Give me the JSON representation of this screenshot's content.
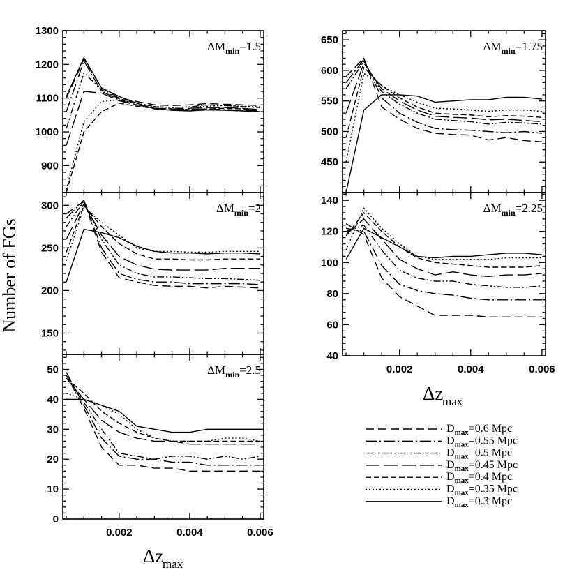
{
  "figure": {
    "y_axis_label": "Number of FGs",
    "x_axis_label_main": "Δz",
    "x_axis_label_sub": "max"
  },
  "legend": {
    "entries": [
      {
        "key": "d06",
        "prefix": "D",
        "sub": "max",
        "text": "=0.6 Mpc",
        "dash": "12,6"
      },
      {
        "key": "d055",
        "prefix": "D",
        "sub": "max",
        "text": "=0.55 Mpc",
        "dash": "16,4,2,4"
      },
      {
        "key": "d05",
        "prefix": "D",
        "sub": "max",
        "text": "=0.5 Mpc",
        "dash": "10,3,2,3,2,3"
      },
      {
        "key": "d045",
        "prefix": "D",
        "sub": "max",
        "text": "=0.45 Mpc",
        "dash": "20,6"
      },
      {
        "key": "d04",
        "prefix": "D",
        "sub": "max",
        "text": "=0.4 Mpc",
        "dash": "8,4"
      },
      {
        "key": "d035",
        "prefix": "D",
        "sub": "max",
        "text": "=0.35 Mpc",
        "dash": "2,3"
      },
      {
        "key": "d03",
        "prefix": "D",
        "sub": "max",
        "text": "=0.3 Mpc",
        "dash": ""
      }
    ]
  },
  "chart_data": [
    {
      "type": "line",
      "id": "p15",
      "annotation": {
        "prefix": "ΔM",
        "sub": "min",
        "suffix": "=1.5"
      },
      "xlim": [
        0.0004,
        0.0061
      ],
      "ylim": [
        820,
        1300
      ],
      "yticks": [
        900,
        1000,
        1100,
        1200,
        1300
      ],
      "xticks": [
        0.002,
        0.004,
        0.006
      ],
      "xtick_labels": [],
      "x": [
        0.0005,
        0.001,
        0.0015,
        0.002,
        0.0025,
        0.003,
        0.0035,
        0.004,
        0.0045,
        0.005,
        0.0055,
        0.006
      ],
      "series": [
        {
          "name": "Dmax=0.6 Mpc",
          "values": [
            1100,
            1215,
            1130,
            1100,
            1090,
            1080,
            1078,
            1080,
            1084,
            1082,
            1080,
            1078
          ]
        },
        {
          "name": "Dmax=0.55 Mpc",
          "values": [
            1060,
            1210,
            1120,
            1095,
            1080,
            1070,
            1068,
            1066,
            1068,
            1066,
            1064,
            1062
          ]
        },
        {
          "name": "Dmax=0.5 Mpc",
          "values": [
            1010,
            1175,
            1125,
            1098,
            1085,
            1075,
            1072,
            1074,
            1080,
            1078,
            1075,
            1072
          ]
        },
        {
          "name": "Dmax=0.45 Mpc",
          "values": [
            960,
            1120,
            1115,
            1092,
            1080,
            1070,
            1068,
            1070,
            1072,
            1072,
            1070,
            1066
          ]
        },
        {
          "name": "Dmax=0.4 Mpc",
          "values": [
            820,
            1000,
            1060,
            1085,
            1076,
            1070,
            1068,
            1066,
            1068,
            1070,
            1068,
            1066
          ]
        },
        {
          "name": "Dmax=0.35 Mpc",
          "values": [
            830,
            1030,
            1090,
            1095,
            1085,
            1075,
            1072,
            1074,
            1076,
            1078,
            1076,
            1074
          ]
        },
        {
          "name": "Dmax=0.3 Mpc",
          "values": [
            1105,
            1220,
            1130,
            1105,
            1085,
            1068,
            1064,
            1062,
            1065,
            1064,
            1062,
            1060
          ]
        }
      ]
    },
    {
      "type": "line",
      "id": "p175",
      "annotation": {
        "prefix": "ΔM",
        "sub": "min",
        "suffix": "=1.75"
      },
      "xlim": [
        0.0004,
        0.0061
      ],
      "ylim": [
        400,
        665
      ],
      "yticks": [
        450,
        500,
        550,
        600,
        650
      ],
      "xticks": [
        0.002,
        0.004,
        0.006
      ],
      "xtick_labels": [],
      "x": [
        0.0005,
        0.001,
        0.0015,
        0.002,
        0.0025,
        0.003,
        0.0035,
        0.004,
        0.0045,
        0.005,
        0.0055,
        0.006
      ],
      "series": [
        {
          "name": "Dmax=0.6 Mpc",
          "values": [
            590,
            620,
            540,
            520,
            505,
            497,
            495,
            494,
            486,
            490,
            485,
            483
          ]
        },
        {
          "name": "Dmax=0.55 Mpc",
          "values": [
            580,
            618,
            555,
            530,
            515,
            505,
            503,
            502,
            500,
            498,
            500,
            497
          ]
        },
        {
          "name": "Dmax=0.5 Mpc",
          "values": [
            570,
            615,
            565,
            545,
            530,
            520,
            518,
            516,
            512,
            515,
            514,
            512
          ]
        },
        {
          "name": "Dmax=0.45 Mpc",
          "values": [
            530,
            612,
            570,
            550,
            535,
            525,
            523,
            522,
            519,
            520,
            518,
            516
          ]
        },
        {
          "name": "Dmax=0.4 Mpc",
          "values": [
            490,
            605,
            575,
            555,
            540,
            530,
            528,
            527,
            524,
            526,
            525,
            523
          ]
        },
        {
          "name": "Dmax=0.35 Mpc",
          "values": [
            450,
            595,
            575,
            560,
            548,
            538,
            537,
            535,
            533,
            535,
            535,
            533
          ]
        },
        {
          "name": "Dmax=0.3 Mpc",
          "values": [
            400,
            535,
            560,
            560,
            558,
            548,
            550,
            552,
            552,
            556,
            556,
            553
          ]
        }
      ]
    },
    {
      "type": "line",
      "id": "p2",
      "annotation": {
        "prefix": "ΔM",
        "sub": "min",
        "suffix": "=2"
      },
      "xlim": [
        0.0004,
        0.0061
      ],
      "ylim": [
        125,
        315
      ],
      "yticks": [
        150,
        200,
        250,
        300
      ],
      "xticks": [
        0.002,
        0.004,
        0.006
      ],
      "xtick_labels": [],
      "x": [
        0.0005,
        0.001,
        0.0015,
        0.002,
        0.0025,
        0.003,
        0.0035,
        0.004,
        0.0045,
        0.005,
        0.0055,
        0.006
      ],
      "series": [
        {
          "name": "Dmax=0.6 Mpc",
          "values": [
            290,
            305,
            245,
            215,
            210,
            206,
            205,
            205,
            203,
            205,
            204,
            203
          ]
        },
        {
          "name": "Dmax=0.55 Mpc",
          "values": [
            285,
            306,
            250,
            220,
            213,
            210,
            210,
            208,
            208,
            208,
            208,
            207
          ]
        },
        {
          "name": "Dmax=0.5 Mpc",
          "values": [
            275,
            305,
            260,
            230,
            220,
            216,
            216,
            215,
            214,
            214,
            213,
            212
          ]
        },
        {
          "name": "Dmax=0.45 Mpc",
          "values": [
            260,
            302,
            265,
            240,
            230,
            225,
            224,
            224,
            224,
            226,
            226,
            226
          ]
        },
        {
          "name": "Dmax=0.4 Mpc",
          "values": [
            245,
            300,
            275,
            255,
            243,
            237,
            237,
            236,
            236,
            237,
            237,
            237
          ]
        },
        {
          "name": "Dmax=0.35 Mpc",
          "values": [
            235,
            298,
            280,
            265,
            250,
            246,
            246,
            245,
            245,
            246,
            246,
            246
          ]
        },
        {
          "name": "Dmax=0.3 Mpc",
          "values": [
            210,
            272,
            268,
            262,
            252,
            246,
            244,
            244,
            243,
            244,
            244,
            243
          ]
        }
      ]
    },
    {
      "type": "line",
      "id": "p225",
      "annotation": {
        "prefix": "ΔM",
        "sub": "min",
        "suffix": "=2.25"
      },
      "xlim": [
        0.0004,
        0.0061
      ],
      "ylim": [
        40,
        145
      ],
      "yticks": [
        40,
        60,
        80,
        100,
        120,
        140
      ],
      "xticks": [
        0.002,
        0.004,
        0.006
      ],
      "xtick_labels": [
        "0.002",
        "0.004",
        "0.006"
      ],
      "x": [
        0.0005,
        0.001,
        0.0015,
        0.002,
        0.0025,
        0.003,
        0.0035,
        0.004,
        0.0045,
        0.005,
        0.0055,
        0.006
      ],
      "series": [
        {
          "name": "Dmax=0.6 Mpc",
          "values": [
            125,
            118,
            90,
            78,
            72,
            66,
            66,
            66,
            65,
            65,
            65,
            65
          ]
        },
        {
          "name": "Dmax=0.55 Mpc",
          "values": [
            122,
            120,
            98,
            86,
            82,
            80,
            79,
            77,
            76,
            76,
            76,
            76
          ]
        },
        {
          "name": "Dmax=0.5 Mpc",
          "values": [
            120,
            124,
            108,
            95,
            90,
            88,
            88,
            86,
            85,
            84,
            84,
            85
          ]
        },
        {
          "name": "Dmax=0.45 Mpc",
          "values": [
            118,
            128,
            115,
            102,
            96,
            92,
            94,
            92,
            91,
            92,
            92,
            93
          ]
        },
        {
          "name": "Dmax=0.4 Mpc",
          "values": [
            117,
            132,
            120,
            110,
            103,
            100,
            99,
            98,
            97,
            97,
            97,
            98
          ]
        },
        {
          "name": "Dmax=0.35 Mpc",
          "values": [
            108,
            135,
            122,
            112,
            104,
            102,
            102,
            102,
            102,
            103,
            103,
            103
          ]
        },
        {
          "name": "Dmax=0.3 Mpc",
          "values": [
            102,
            122,
            116,
            110,
            104,
            103,
            104,
            104,
            105,
            106,
            106,
            105
          ]
        }
      ]
    },
    {
      "type": "line",
      "id": "p25",
      "annotation": {
        "prefix": "ΔM",
        "sub": "min",
        "suffix": "=2.5"
      },
      "xlim": [
        0.0004,
        0.0061
      ],
      "ylim": [
        0,
        55
      ],
      "yticks": [
        0,
        10,
        20,
        30,
        40,
        50
      ],
      "xticks": [
        0.002,
        0.004,
        0.006
      ],
      "xtick_labels": [
        "0.002",
        "0.004",
        "0.006"
      ],
      "x": [
        0.0005,
        0.001,
        0.0015,
        0.002,
        0.0025,
        0.003,
        0.0035,
        0.004,
        0.0045,
        0.005,
        0.0055,
        0.006
      ],
      "series": [
        {
          "name": "Dmax=0.6 Mpc",
          "values": [
            48,
            37,
            24,
            18,
            18,
            17,
            17,
            16,
            16,
            16,
            16,
            16
          ]
        },
        {
          "name": "Dmax=0.55 Mpc",
          "values": [
            49,
            38,
            27,
            21,
            20,
            20,
            19,
            19,
            18,
            18,
            18,
            18
          ]
        },
        {
          "name": "Dmax=0.5 Mpc",
          "values": [
            48,
            39,
            30,
            22,
            21,
            20,
            21,
            21,
            20,
            21,
            20,
            21
          ]
        },
        {
          "name": "Dmax=0.45 Mpc",
          "values": [
            47,
            40,
            33,
            29,
            27,
            26,
            26,
            25,
            25,
            25,
            25,
            25
          ]
        },
        {
          "name": "Dmax=0.4 Mpc",
          "values": [
            47,
            42,
            36,
            32,
            29,
            27,
            26,
            26,
            26,
            26,
            26,
            26
          ]
        },
        {
          "name": "Dmax=0.35 Mpc",
          "values": [
            42,
            40,
            38,
            35,
            30,
            27,
            26,
            26,
            26,
            27,
            27,
            26
          ]
        },
        {
          "name": "Dmax=0.3 Mpc",
          "values": [
            40,
            40,
            38,
            36,
            31,
            30,
            29,
            29,
            30,
            30,
            30,
            30
          ]
        }
      ]
    }
  ]
}
